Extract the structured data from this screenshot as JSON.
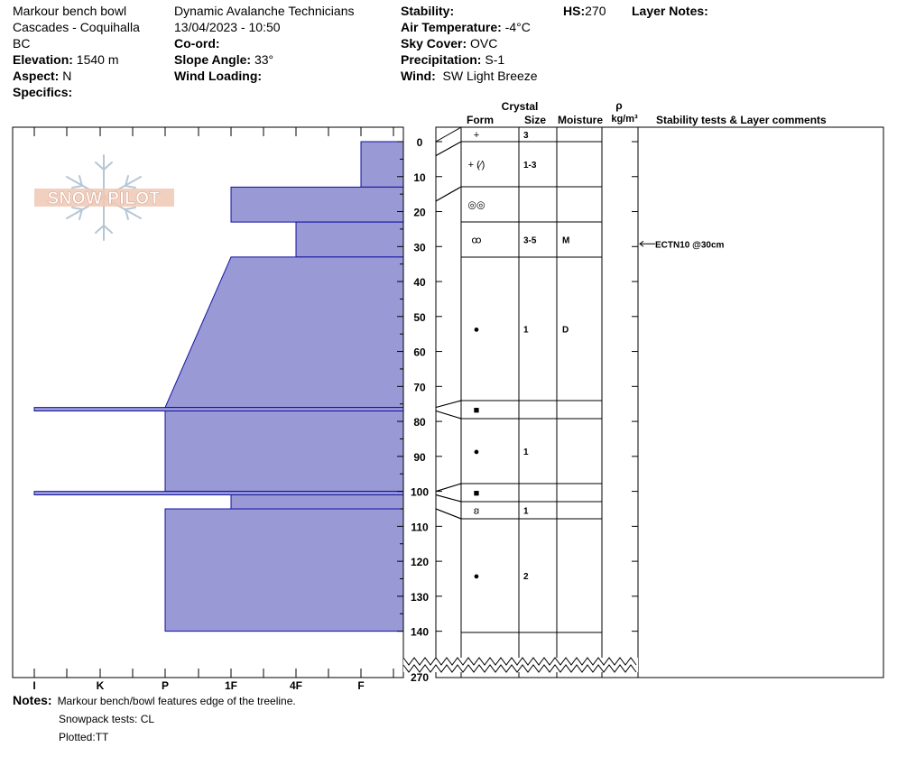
{
  "header": {
    "location": {
      "name": "Markour bench bowl",
      "range": "Cascades - Coquihalla",
      "region": "BC",
      "elevation_label": "Elevation:",
      "elevation_value": "1540 m",
      "aspect_label": "Aspect:",
      "aspect_value": "N",
      "specifics_label": "Specifics:"
    },
    "observer": {
      "org": "Dynamic Avalanche Technicians",
      "datetime": "13/04/2023 - 10:50",
      "coord_label": "Co-ord:",
      "slope_label": "Slope Angle:",
      "slope_value": "33°",
      "wind_loading_label": "Wind Loading:"
    },
    "conditions": {
      "stability_label": "Stability:",
      "air_temp_label": "Air Temperature:",
      "air_temp_value": "-4°C",
      "sky_label": "Sky Cover:",
      "sky_value": "OVC",
      "precip_label": "Precipitation:",
      "precip_value": "S-1",
      "wind_label": "Wind:",
      "wind_value": "SW  Light Breeze"
    },
    "hs_label": "HS:",
    "hs_value": "270",
    "layer_notes_label": "Layer Notes:"
  },
  "table_headers": {
    "crystal": "Crystal",
    "form": "Form",
    "size": "Size",
    "moisture": "Moisture",
    "rho": "ρ",
    "density_unit": "kg/m³",
    "stability": "Stability tests & Layer comments"
  },
  "logo_text": "SNOW PILOT",
  "chart_data": {
    "type": "bar",
    "title": "",
    "xlabel": "",
    "ylabel": "",
    "hardness_ticks": [
      "I",
      "K",
      "P",
      "1F",
      "4F",
      "F"
    ],
    "depth_ticks": [
      0,
      10,
      20,
      30,
      40,
      50,
      60,
      70,
      80,
      90,
      100,
      110,
      120,
      130,
      140
    ],
    "depth_range": [
      0,
      140
    ],
    "hs_tick": "270",
    "hardness_profile": [
      {
        "top": 0,
        "bottom": 13,
        "hardness": "F",
        "hardness_bottom": "F"
      },
      {
        "top": 13,
        "bottom": 23,
        "hardness": "1F",
        "hardness_bottom": "1F"
      },
      {
        "top": 23,
        "bottom": 33,
        "hardness": "4F",
        "hardness_bottom": "4F"
      },
      {
        "top": 33,
        "bottom": 76,
        "hardness": "1F",
        "hardness_bottom": "P"
      },
      {
        "top": 76,
        "bottom": 77,
        "hardness": "I",
        "hardness_bottom": "I"
      },
      {
        "top": 77,
        "bottom": 100,
        "hardness": "P",
        "hardness_bottom": "P"
      },
      {
        "top": 100,
        "bottom": 101,
        "hardness": "I",
        "hardness_bottom": "I"
      },
      {
        "top": 101,
        "bottom": 105,
        "hardness": "1F",
        "hardness_bottom": "1F"
      },
      {
        "top": 105,
        "bottom": 140,
        "hardness": "P",
        "hardness_bottom": "P"
      }
    ],
    "layers": [
      {
        "top": 0,
        "bottom": 4,
        "form": "+",
        "size": "3",
        "moisture": ""
      },
      {
        "top": 4,
        "bottom": 17,
        "form": "+ (⁄)",
        "size": "1-3",
        "moisture": ""
      },
      {
        "top": 17,
        "bottom": 23,
        "form": "◎◎",
        "size": "",
        "moisture": ""
      },
      {
        "top": 23,
        "bottom": 33,
        "form": "ꝏ",
        "size": "3-5",
        "moisture": "M"
      },
      {
        "top": 33,
        "bottom": 76,
        "form": "●",
        "size": "1",
        "moisture": "D"
      },
      {
        "top": 76,
        "bottom": 77,
        "form": "■",
        "size": "",
        "moisture": ""
      },
      {
        "top": 77,
        "bottom": 100,
        "form": "●",
        "size": "1",
        "moisture": ""
      },
      {
        "top": 100,
        "bottom": 101,
        "form": "■",
        "size": "",
        "moisture": ""
      },
      {
        "top": 101,
        "bottom": 105,
        "form": "ꞛ",
        "size": "1",
        "moisture": ""
      },
      {
        "top": 105,
        "bottom": 140,
        "form": "●",
        "size": "2",
        "moisture": ""
      }
    ],
    "tests": [
      {
        "depth": 30,
        "label": "ECTN10 @30cm"
      }
    ],
    "colors": {
      "fill": "#9999d6",
      "stroke": "#1010a0"
    }
  },
  "notes": {
    "label": "Notes:",
    "lines": [
      "Markour bench/bowl features edge of the treeline.",
      "Snowpack tests: CL",
      "Plotted:TT"
    ]
  }
}
